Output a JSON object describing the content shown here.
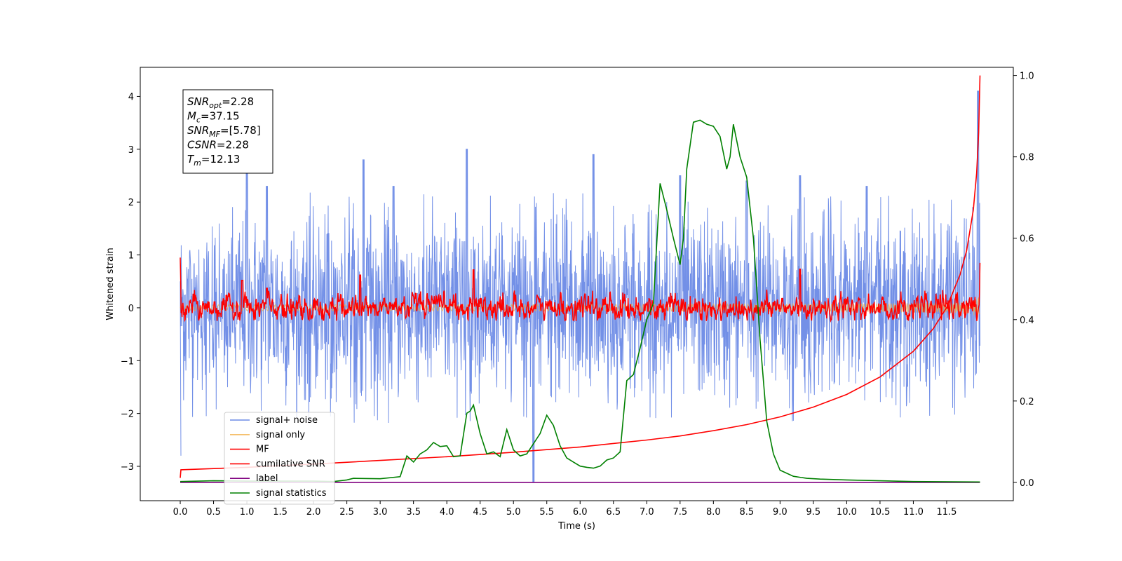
{
  "chart_data": {
    "type": "line",
    "xlabel": "Time (s)",
    "ylabel": "Whitened strain",
    "xlim": [
      -0.6,
      12.5
    ],
    "ylim": [
      -3.65,
      4.55
    ],
    "y2lim": [
      -0.045,
      1.02
    ],
    "x_ticks": [
      0.0,
      0.5,
      1.0,
      1.5,
      2.0,
      2.5,
      3.0,
      3.5,
      4.0,
      4.5,
      5.0,
      5.5,
      6.0,
      6.5,
      7.0,
      7.5,
      8.0,
      8.5,
      9.0,
      9.5,
      10.0,
      10.5,
      11.0,
      11.5
    ],
    "x_tick_labels": [
      "0.0",
      "0.5",
      "1.0",
      "1.5",
      "2.0",
      "2.5",
      "3.0",
      "3.5",
      "4.0",
      "4.5",
      "5.0",
      "5.5",
      "6.0",
      "6.5",
      "7.0",
      "7.5",
      "8.0",
      "8.5",
      "9.0",
      "9.5",
      "10.0",
      "10.5",
      "11.0",
      "11.5"
    ],
    "y_ticks": [
      -3,
      -2,
      -1,
      0,
      1,
      2,
      3,
      4
    ],
    "y_tick_labels": [
      "−3",
      "−2",
      "−1",
      "0",
      "1",
      "2",
      "3",
      "4"
    ],
    "y2_ticks": [
      0.0,
      0.2,
      0.4,
      0.6,
      0.8,
      1.0
    ],
    "y2_tick_labels": [
      "0.0",
      "0.2",
      "0.4",
      "0.6",
      "0.8",
      "1.0"
    ],
    "grid": false,
    "legend_position": "lower-left",
    "series": [
      {
        "name": "signal+ noise",
        "color": "#6b8ae6",
        "axis": "left",
        "style": "noise",
        "x_range": [
          0,
          12
        ],
        "amplitude": 1.0,
        "peaks": [
          [
            1.0,
            2.6
          ],
          [
            1.3,
            2.3
          ],
          [
            2.75,
            2.8
          ],
          [
            3.2,
            2.3
          ],
          [
            4.3,
            3.0
          ],
          [
            5.3,
            -3.3
          ],
          [
            6.2,
            2.9
          ],
          [
            7.5,
            2.5
          ],
          [
            8.5,
            2.4
          ],
          [
            9.3,
            2.5
          ],
          [
            10.3,
            2.3
          ],
          [
            11.97,
            4.1
          ]
        ]
      },
      {
        "name": "signal only",
        "color": "#f2a93b",
        "axis": "left",
        "style": "chirp",
        "x_range": [
          0,
          12
        ],
        "final_amplitude": 0.3
      },
      {
        "name": "MF",
        "color": "#ff0000",
        "axis": "left",
        "style": "noise-small",
        "x_range": [
          0,
          12
        ],
        "amplitude": 0.1,
        "start": 0.95,
        "end": 0.85,
        "peaks": [
          [
            0.93,
            0.52
          ],
          [
            1.3,
            0.37
          ],
          [
            2.7,
            0.62
          ],
          [
            4.4,
            0.72
          ],
          [
            9.3,
            0.73
          ]
        ]
      },
      {
        "name": "cumilative SNR",
        "color": "#ff0000",
        "axis": "right",
        "style": "line",
        "x": [
          0.0,
          0.01,
          1.0,
          2.0,
          3.0,
          4.0,
          5.0,
          6.0,
          7.0,
          7.5,
          8.0,
          8.5,
          9.0,
          9.5,
          10.0,
          10.5,
          11.0,
          11.3,
          11.5,
          11.7,
          11.8,
          11.9,
          11.95,
          11.98,
          12.0
        ],
        "y": [
          0.011,
          0.031,
          0.037,
          0.045,
          0.054,
          0.063,
          0.074,
          0.087,
          0.104,
          0.114,
          0.127,
          0.142,
          0.161,
          0.185,
          0.216,
          0.259,
          0.322,
          0.378,
          0.43,
          0.51,
          0.57,
          0.67,
          0.76,
          0.86,
          1.0
        ]
      },
      {
        "name": "label",
        "color": "#800080",
        "axis": "right",
        "style": "line",
        "x": [
          0,
          12
        ],
        "y": [
          0.0,
          0.0
        ]
      },
      {
        "name": "signal statistics",
        "color": "#008000",
        "axis": "right",
        "style": "line",
        "x": [
          0.0,
          0.5,
          1.0,
          2.0,
          2.3,
          2.5,
          2.6,
          3.0,
          3.3,
          3.4,
          3.5,
          3.6,
          3.7,
          3.8,
          3.9,
          4.0,
          4.1,
          4.2,
          4.3,
          4.35,
          4.4,
          4.5,
          4.6,
          4.7,
          4.8,
          4.9,
          5.0,
          5.1,
          5.2,
          5.3,
          5.4,
          5.5,
          5.6,
          5.7,
          5.8,
          5.9,
          6.0,
          6.1,
          6.2,
          6.3,
          6.4,
          6.5,
          6.6,
          6.7,
          6.8,
          6.9,
          7.0,
          7.1,
          7.2,
          7.3,
          7.4,
          7.5,
          7.55,
          7.6,
          7.7,
          7.8,
          7.9,
          8.0,
          8.1,
          8.2,
          8.25,
          8.3,
          8.4,
          8.5,
          8.6,
          8.7,
          8.8,
          8.9,
          9.0,
          9.2,
          9.4,
          9.6,
          10.0,
          10.5,
          11.0,
          12.0
        ],
        "y": [
          0.002,
          0.004,
          0.003,
          0.003,
          0.002,
          0.006,
          0.01,
          0.009,
          0.014,
          0.065,
          0.05,
          0.07,
          0.08,
          0.098,
          0.088,
          0.09,
          0.063,
          0.065,
          0.17,
          0.175,
          0.19,
          0.12,
          0.07,
          0.075,
          0.063,
          0.13,
          0.08,
          0.065,
          0.07,
          0.095,
          0.12,
          0.165,
          0.14,
          0.09,
          0.06,
          0.05,
          0.04,
          0.037,
          0.035,
          0.04,
          0.055,
          0.06,
          0.075,
          0.25,
          0.265,
          0.33,
          0.4,
          0.44,
          0.735,
          0.67,
          0.6,
          0.535,
          0.6,
          0.77,
          0.885,
          0.89,
          0.88,
          0.875,
          0.85,
          0.77,
          0.8,
          0.88,
          0.8,
          0.75,
          0.6,
          0.35,
          0.15,
          0.07,
          0.03,
          0.015,
          0.01,
          0.008,
          0.006,
          0.004,
          0.002,
          0.001
        ]
      }
    ],
    "annotation": {
      "lines": [
        {
          "base": "SNR",
          "sub": "opt",
          "rest": "=2.28"
        },
        {
          "base": "M",
          "sub": "c",
          "rest": "=37.15"
        },
        {
          "base": "SNR",
          "sub": "MF",
          "rest": "=[5.78]"
        },
        {
          "base": "CSNR",
          "sub": "",
          "rest": "=2.28"
        },
        {
          "base": "T",
          "sub": "m",
          "rest": "=12.13"
        }
      ]
    }
  }
}
